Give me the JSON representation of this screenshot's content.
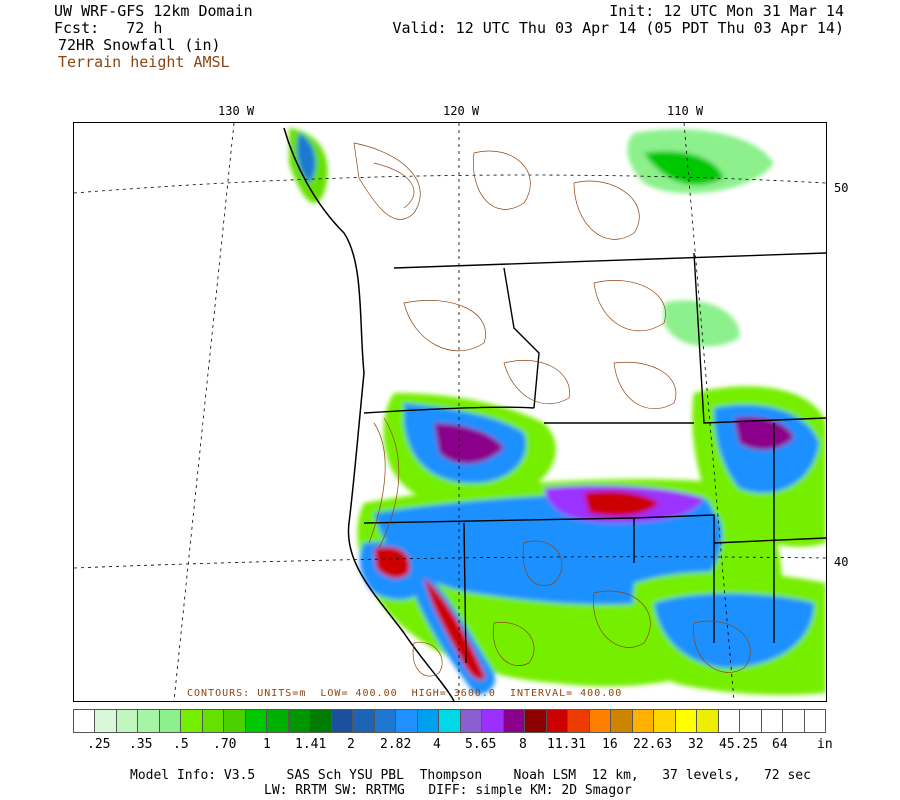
{
  "header": {
    "domain": "UW WRF-GFS 12km Domain",
    "fcst": "Fcst:   72 h",
    "field": "72HR Snowfall (in)",
    "overlay": "Terrain height AMSL",
    "init": "Init: 12 UTC Mon 31 Mar 14",
    "valid": "Valid: 12 UTC Thu 03 Apr 14 (05 PDT Thu 03 Apr 14)"
  },
  "map": {
    "lon_labels": [
      "130 W",
      "120 W",
      "110 W"
    ],
    "lat_labels": [
      "50",
      "40"
    ],
    "contour_note": "CONTOURS: UNITS=m  LOW= 400.00  HIGH= 3600.0  INTERVAL= 400.00"
  },
  "legend": {
    "colors": [
      "#ffffff",
      "#d9f7d9",
      "#bff7bf",
      "#a6f5a6",
      "#8cf08c",
      "#76ee00",
      "#66e000",
      "#4bd000",
      "#00c800",
      "#00b000",
      "#009600",
      "#007d00",
      "#1c4f9c",
      "#1e64b4",
      "#1e78d2",
      "#1e90ff",
      "#00a0f0",
      "#00d8e8",
      "#8a60d0",
      "#9b30ff",
      "#8b008b",
      "#8b0000",
      "#cd0000",
      "#ee3b00",
      "#ff7f00",
      "#cd8500",
      "#ffb000",
      "#ffd700",
      "#ffff00",
      "#eeee00",
      "#ffffff",
      "#ffffff",
      "#ffffff",
      "#ffffff",
      "#ffffff"
    ],
    "labels": [
      ".25",
      ".35",
      ".5",
      ".70",
      "1",
      "1.41",
      "2",
      "2.82",
      "4",
      "5.65",
      "8",
      "11.31",
      "16",
      "22.63",
      "32",
      "45.25",
      "64",
      "in"
    ]
  },
  "footer": {
    "line1": "Model Info: V3.5    SAS Sch YSU PBL  Thompson    Noah LSM  12 km,   37 levels,   72 sec",
    "line2": "LW: RRTM SW: RRTMG   DIFF: simple KM: 2D Smagor"
  }
}
